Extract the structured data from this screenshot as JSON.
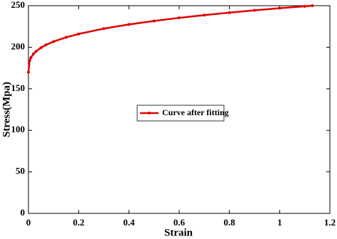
{
  "chart_data": {
    "type": "line",
    "x_label": "Strain",
    "y_label": "Stress(Mpa)",
    "x": [
      0,
      0.005,
      0.01,
      0.02,
      0.03,
      0.05,
      0.07,
      0.1,
      0.15,
      0.2,
      0.3,
      0.4,
      0.5,
      0.6,
      0.7,
      0.8,
      0.9,
      1.0,
      1.1,
      1.13
    ],
    "series": [
      {
        "name": "Curve after fitting",
        "color": "#e00000",
        "values": [
          170,
          184.1,
          187.6,
          192.0,
          195.0,
          199.5,
          202.9,
          206.8,
          211.9,
          216.0,
          222.4,
          227.4,
          231.6,
          235.4,
          238.7,
          241.7,
          244.4,
          247.0,
          249.3,
          250
        ]
      }
    ],
    "xlim": [
      0,
      1.2
    ],
    "xticks": [
      0,
      0.2,
      0.4,
      0.6,
      0.8,
      1,
      1.2
    ],
    "ylim": [
      0,
      250
    ],
    "yticks": [
      0,
      50,
      100,
      150,
      200,
      250
    ],
    "legend": "center"
  }
}
